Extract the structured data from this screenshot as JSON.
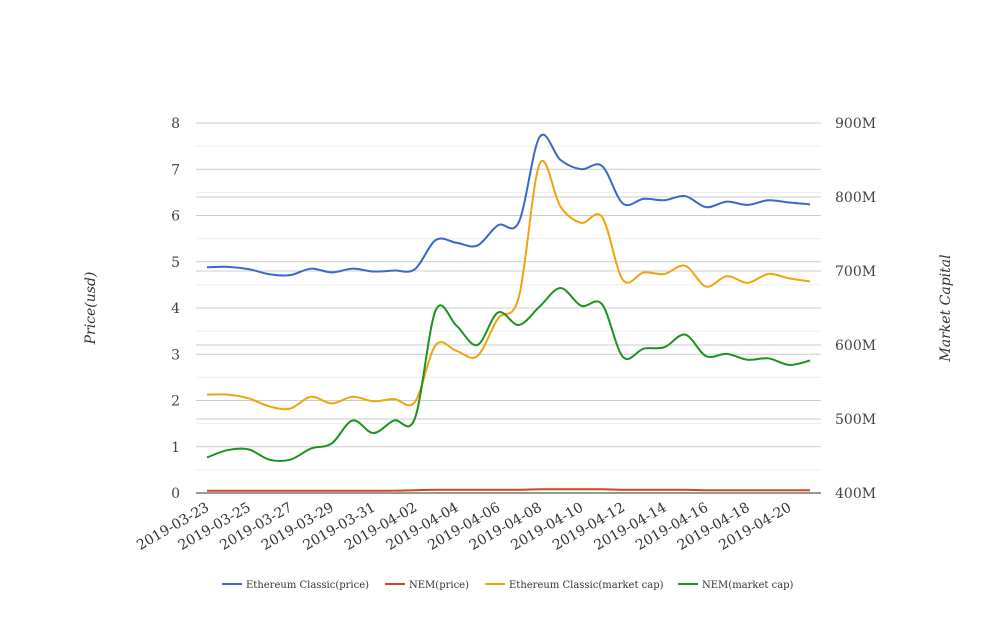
{
  "chart_data": {
    "type": "line",
    "title": "",
    "xlabel": "",
    "ylabel_left": "Price(usd)",
    "ylabel_right": "Market Capital",
    "ylim_left": [
      0,
      8
    ],
    "yticks_left": [
      "0",
      "1",
      "2",
      "3",
      "4",
      "5",
      "6",
      "7",
      "8"
    ],
    "ylim_right": [
      400,
      900
    ],
    "yticks_right": [
      "400M",
      "500M",
      "600M",
      "700M",
      "800M",
      "900M"
    ],
    "x": [
      "2019-03-23",
      "2019-03-24",
      "2019-03-25",
      "2019-03-26",
      "2019-03-27",
      "2019-03-28",
      "2019-03-29",
      "2019-03-30",
      "2019-03-31",
      "2019-04-01",
      "2019-04-02",
      "2019-04-03",
      "2019-04-04",
      "2019-04-05",
      "2019-04-06",
      "2019-04-07",
      "2019-04-08",
      "2019-04-09",
      "2019-04-10",
      "2019-04-11",
      "2019-04-12",
      "2019-04-13",
      "2019-04-14",
      "2019-04-15",
      "2019-04-16",
      "2019-04-17",
      "2019-04-18",
      "2019-04-19",
      "2019-04-20",
      "2019-04-21"
    ],
    "xtick_labels": [
      "2019-03-23",
      "2019-03-25",
      "2019-03-27",
      "2019-03-29",
      "2019-03-31",
      "2019-04-02",
      "2019-04-04",
      "2019-04-06",
      "2019-04-08",
      "2019-04-10",
      "2019-04-12",
      "2019-04-14",
      "2019-04-16",
      "2019-04-18",
      "2019-04-20"
    ],
    "legend_position": "bottom",
    "grid": true,
    "series": [
      {
        "name": "Ethereum Classic(price)",
        "axis": "left",
        "color": "#3a67c8",
        "values": [
          4.88,
          4.89,
          4.84,
          4.73,
          4.71,
          4.85,
          4.77,
          4.85,
          4.79,
          4.81,
          4.84,
          5.47,
          5.41,
          5.35,
          5.79,
          5.86,
          7.7,
          7.2,
          7.0,
          7.07,
          6.26,
          6.36,
          6.33,
          6.42,
          6.18,
          6.3,
          6.23,
          6.33,
          6.28,
          6.24
        ]
      },
      {
        "name": "NEM(price)",
        "axis": "left",
        "color": "#cc4a1e",
        "values": [
          0.05,
          0.05,
          0.05,
          0.05,
          0.05,
          0.05,
          0.05,
          0.05,
          0.05,
          0.05,
          0.06,
          0.07,
          0.07,
          0.07,
          0.07,
          0.07,
          0.08,
          0.08,
          0.08,
          0.08,
          0.07,
          0.07,
          0.07,
          0.07,
          0.06,
          0.06,
          0.06,
          0.06,
          0.06,
          0.06
        ]
      },
      {
        "name": "Ethereum Classic(market cap)",
        "axis": "right",
        "color": "#f4a20f",
        "values": [
          533,
          533,
          528,
          517,
          514,
          530,
          521,
          530,
          524,
          527,
          523,
          600,
          592,
          585,
          636,
          665,
          845,
          787,
          765,
          773,
          688,
          698,
          696,
          707,
          679,
          693,
          684,
          696,
          690,
          686
        ]
      },
      {
        "name": "NEM(market cap)",
        "axis": "right",
        "color": "#1b9320",
        "values": [
          448,
          458,
          459,
          445,
          445,
          460,
          467,
          498,
          481,
          498,
          501,
          647,
          626,
          600,
          644,
          627,
          652,
          677,
          653,
          655,
          584,
          595,
          597,
          614,
          585,
          588,
          580,
          582,
          573,
          579
        ]
      }
    ]
  }
}
